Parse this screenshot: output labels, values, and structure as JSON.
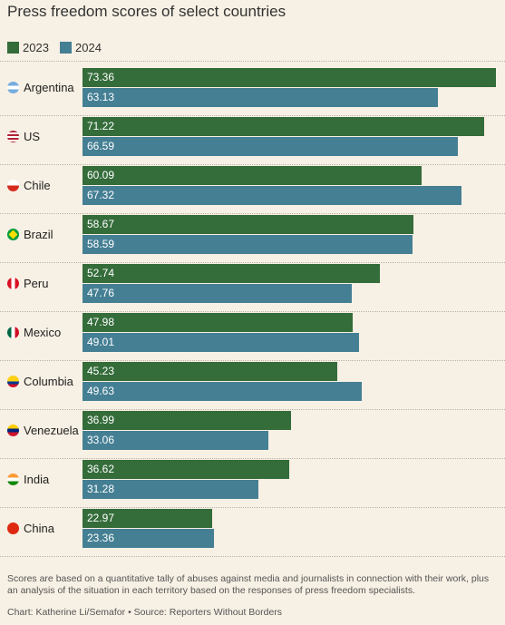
{
  "colors": {
    "c2023": "#346c3a",
    "c2024": "#457f94",
    "background": "#f7f0e4"
  },
  "chart_data": {
    "type": "bar",
    "orientation": "horizontal",
    "title": "Press freedom scores of select countries",
    "categories": [
      "Argentina",
      "US",
      "Chile",
      "Brazil",
      "Peru",
      "Mexico",
      "Columbia",
      "Venezuela",
      "India",
      "China"
    ],
    "flag_icons": [
      "argentina-flag-icon",
      "us-flag-icon",
      "chile-flag-icon",
      "brazil-flag-icon",
      "peru-flag-icon",
      "mexico-flag-icon",
      "colombia-flag-icon",
      "venezuela-flag-icon",
      "india-flag-icon",
      "china-flag-icon"
    ],
    "series": [
      {
        "name": "2023",
        "values": [
          73.36,
          71.22,
          60.09,
          58.67,
          52.74,
          47.98,
          45.23,
          36.99,
          36.62,
          22.97
        ]
      },
      {
        "name": "2024",
        "values": [
          63.13,
          66.59,
          67.32,
          58.59,
          47.76,
          49.01,
          49.63,
          33.06,
          31.28,
          23.36
        ]
      }
    ],
    "xlim": [
      0,
      73.36
    ],
    "legend_position": "top-left",
    "grid": false,
    "data_labels": true
  },
  "footer": {
    "note": "Scores are based on a quantitative tally of abuses against media and journalists in connection with their work, plus an analysis of the situation in each territory based on the responses of press freedom specialists.",
    "credit": "Chart: Katherine Li/Semafor • Source: Reporters Without Borders"
  }
}
